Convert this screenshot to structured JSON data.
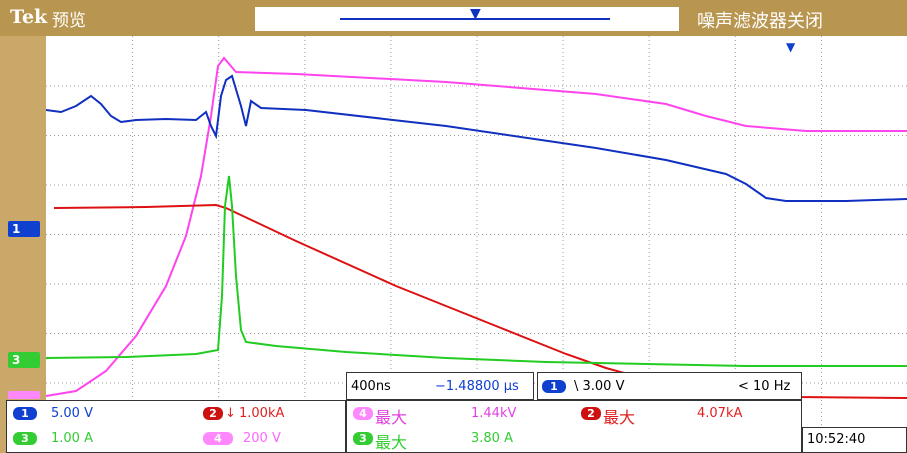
{
  "header": {
    "brand": "Tek",
    "mode": "预览",
    "filter_status": "噪声滤波器关闭"
  },
  "channels": [
    {
      "id": "1",
      "color": "#1040d0",
      "scale": "5.00 V"
    },
    {
      "id": "2",
      "color": "#e02020",
      "scale": "1.00kA"
    },
    {
      "id": "3",
      "color": "#33cc33",
      "scale": "1.00 A"
    },
    {
      "id": "4",
      "color": "#ff66ff",
      "scale": "200 V"
    }
  ],
  "ch2_marker": "2",
  "ch2_arrow": "↓",
  "measurements": [
    {
      "channel": "4",
      "label": "最大",
      "value": "1.44kV",
      "color": "#e040e0"
    },
    {
      "channel": "2",
      "label": "最大",
      "value": "4.07kA",
      "color": "#e02020"
    },
    {
      "channel": "3",
      "label": "最大",
      "value": "3.80 A",
      "color": "#33cc33"
    }
  ],
  "timebase": {
    "scale": "400ns",
    "position": "−1.48800 µs"
  },
  "trigger": {
    "channel": "1",
    "slope_level": "\\ 3.00 V",
    "frequency": "< 10 Hz"
  },
  "clock": "10:52:40",
  "icons": {
    "trigger_position": "trigger-position-icon",
    "trigger_level": "trigger-level-icon"
  }
}
